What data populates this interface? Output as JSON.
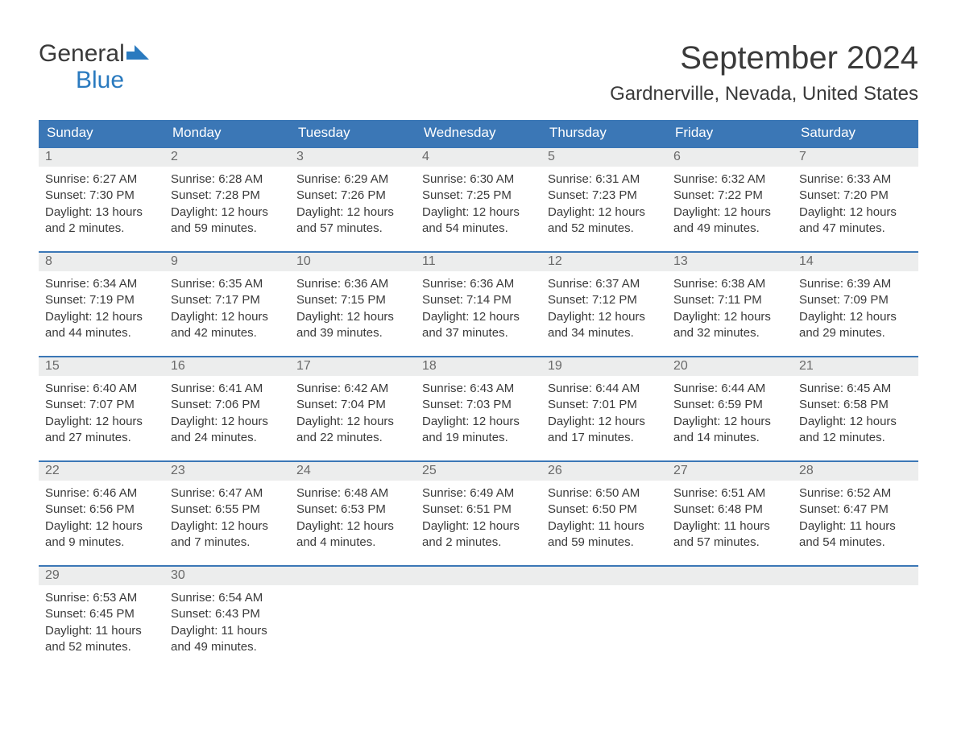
{
  "logo": {
    "word1": "General",
    "word2": "Blue"
  },
  "title": "September 2024",
  "location": "Gardnerville, Nevada, United States",
  "colors": {
    "header_bg": "#3b77b6",
    "header_text": "#ffffff",
    "daynum_bg": "#eceded",
    "daynum_text": "#6a6a6a",
    "body_text": "#3a3a3a",
    "logo_blue": "#2a7abf",
    "rule": "#3b77b6"
  },
  "typography": {
    "title_fontsize": 40,
    "location_fontsize": 24,
    "weekday_fontsize": 17,
    "daynum_fontsize": 16,
    "body_fontsize": 15,
    "logo_fontsize": 30
  },
  "weekdays": [
    "Sunday",
    "Monday",
    "Tuesday",
    "Wednesday",
    "Thursday",
    "Friday",
    "Saturday"
  ],
  "weeks": [
    [
      {
        "n": "1",
        "sunrise": "Sunrise: 6:27 AM",
        "sunset": "Sunset: 7:30 PM",
        "d1": "Daylight: 13 hours",
        "d2": "and 2 minutes."
      },
      {
        "n": "2",
        "sunrise": "Sunrise: 6:28 AM",
        "sunset": "Sunset: 7:28 PM",
        "d1": "Daylight: 12 hours",
        "d2": "and 59 minutes."
      },
      {
        "n": "3",
        "sunrise": "Sunrise: 6:29 AM",
        "sunset": "Sunset: 7:26 PM",
        "d1": "Daylight: 12 hours",
        "d2": "and 57 minutes."
      },
      {
        "n": "4",
        "sunrise": "Sunrise: 6:30 AM",
        "sunset": "Sunset: 7:25 PM",
        "d1": "Daylight: 12 hours",
        "d2": "and 54 minutes."
      },
      {
        "n": "5",
        "sunrise": "Sunrise: 6:31 AM",
        "sunset": "Sunset: 7:23 PM",
        "d1": "Daylight: 12 hours",
        "d2": "and 52 minutes."
      },
      {
        "n": "6",
        "sunrise": "Sunrise: 6:32 AM",
        "sunset": "Sunset: 7:22 PM",
        "d1": "Daylight: 12 hours",
        "d2": "and 49 minutes."
      },
      {
        "n": "7",
        "sunrise": "Sunrise: 6:33 AM",
        "sunset": "Sunset: 7:20 PM",
        "d1": "Daylight: 12 hours",
        "d2": "and 47 minutes."
      }
    ],
    [
      {
        "n": "8",
        "sunrise": "Sunrise: 6:34 AM",
        "sunset": "Sunset: 7:19 PM",
        "d1": "Daylight: 12 hours",
        "d2": "and 44 minutes."
      },
      {
        "n": "9",
        "sunrise": "Sunrise: 6:35 AM",
        "sunset": "Sunset: 7:17 PM",
        "d1": "Daylight: 12 hours",
        "d2": "and 42 minutes."
      },
      {
        "n": "10",
        "sunrise": "Sunrise: 6:36 AM",
        "sunset": "Sunset: 7:15 PM",
        "d1": "Daylight: 12 hours",
        "d2": "and 39 minutes."
      },
      {
        "n": "11",
        "sunrise": "Sunrise: 6:36 AM",
        "sunset": "Sunset: 7:14 PM",
        "d1": "Daylight: 12 hours",
        "d2": "and 37 minutes."
      },
      {
        "n": "12",
        "sunrise": "Sunrise: 6:37 AM",
        "sunset": "Sunset: 7:12 PM",
        "d1": "Daylight: 12 hours",
        "d2": "and 34 minutes."
      },
      {
        "n": "13",
        "sunrise": "Sunrise: 6:38 AM",
        "sunset": "Sunset: 7:11 PM",
        "d1": "Daylight: 12 hours",
        "d2": "and 32 minutes."
      },
      {
        "n": "14",
        "sunrise": "Sunrise: 6:39 AM",
        "sunset": "Sunset: 7:09 PM",
        "d1": "Daylight: 12 hours",
        "d2": "and 29 minutes."
      }
    ],
    [
      {
        "n": "15",
        "sunrise": "Sunrise: 6:40 AM",
        "sunset": "Sunset: 7:07 PM",
        "d1": "Daylight: 12 hours",
        "d2": "and 27 minutes."
      },
      {
        "n": "16",
        "sunrise": "Sunrise: 6:41 AM",
        "sunset": "Sunset: 7:06 PM",
        "d1": "Daylight: 12 hours",
        "d2": "and 24 minutes."
      },
      {
        "n": "17",
        "sunrise": "Sunrise: 6:42 AM",
        "sunset": "Sunset: 7:04 PM",
        "d1": "Daylight: 12 hours",
        "d2": "and 22 minutes."
      },
      {
        "n": "18",
        "sunrise": "Sunrise: 6:43 AM",
        "sunset": "Sunset: 7:03 PM",
        "d1": "Daylight: 12 hours",
        "d2": "and 19 minutes."
      },
      {
        "n": "19",
        "sunrise": "Sunrise: 6:44 AM",
        "sunset": "Sunset: 7:01 PM",
        "d1": "Daylight: 12 hours",
        "d2": "and 17 minutes."
      },
      {
        "n": "20",
        "sunrise": "Sunrise: 6:44 AM",
        "sunset": "Sunset: 6:59 PM",
        "d1": "Daylight: 12 hours",
        "d2": "and 14 minutes."
      },
      {
        "n": "21",
        "sunrise": "Sunrise: 6:45 AM",
        "sunset": "Sunset: 6:58 PM",
        "d1": "Daylight: 12 hours",
        "d2": "and 12 minutes."
      }
    ],
    [
      {
        "n": "22",
        "sunrise": "Sunrise: 6:46 AM",
        "sunset": "Sunset: 6:56 PM",
        "d1": "Daylight: 12 hours",
        "d2": "and 9 minutes."
      },
      {
        "n": "23",
        "sunrise": "Sunrise: 6:47 AM",
        "sunset": "Sunset: 6:55 PM",
        "d1": "Daylight: 12 hours",
        "d2": "and 7 minutes."
      },
      {
        "n": "24",
        "sunrise": "Sunrise: 6:48 AM",
        "sunset": "Sunset: 6:53 PM",
        "d1": "Daylight: 12 hours",
        "d2": "and 4 minutes."
      },
      {
        "n": "25",
        "sunrise": "Sunrise: 6:49 AM",
        "sunset": "Sunset: 6:51 PM",
        "d1": "Daylight: 12 hours",
        "d2": "and 2 minutes."
      },
      {
        "n": "26",
        "sunrise": "Sunrise: 6:50 AM",
        "sunset": "Sunset: 6:50 PM",
        "d1": "Daylight: 11 hours",
        "d2": "and 59 minutes."
      },
      {
        "n": "27",
        "sunrise": "Sunrise: 6:51 AM",
        "sunset": "Sunset: 6:48 PM",
        "d1": "Daylight: 11 hours",
        "d2": "and 57 minutes."
      },
      {
        "n": "28",
        "sunrise": "Sunrise: 6:52 AM",
        "sunset": "Sunset: 6:47 PM",
        "d1": "Daylight: 11 hours",
        "d2": "and 54 minutes."
      }
    ],
    [
      {
        "n": "29",
        "sunrise": "Sunrise: 6:53 AM",
        "sunset": "Sunset: 6:45 PM",
        "d1": "Daylight: 11 hours",
        "d2": "and 52 minutes."
      },
      {
        "n": "30",
        "sunrise": "Sunrise: 6:54 AM",
        "sunset": "Sunset: 6:43 PM",
        "d1": "Daylight: 11 hours",
        "d2": "and 49 minutes."
      },
      null,
      null,
      null,
      null,
      null
    ]
  ]
}
